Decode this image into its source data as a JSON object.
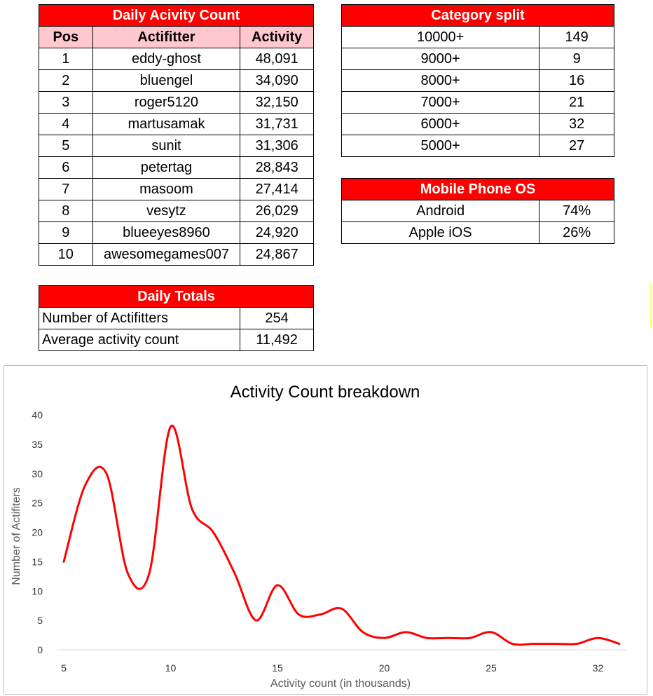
{
  "daily": {
    "title": "Daily Acivity Count",
    "headers": [
      "Pos",
      "Actifitter",
      "Activity"
    ],
    "rows": [
      [
        "1",
        "eddy-ghost",
        "48,091"
      ],
      [
        "2",
        "bluengel",
        "34,090"
      ],
      [
        "3",
        "roger5120",
        "32,150"
      ],
      [
        "4",
        "martusamak",
        "31,731"
      ],
      [
        "5",
        "sunit",
        "31,306"
      ],
      [
        "6",
        "petertag",
        "28,843"
      ],
      [
        "7",
        "masoom",
        "27,414"
      ],
      [
        "8",
        "vesytz",
        "26,029"
      ],
      [
        "9",
        "blueeyes8960",
        "24,920"
      ],
      [
        "10",
        "awesomegames007",
        "24,867"
      ]
    ]
  },
  "category": {
    "title": "Category split",
    "rows": [
      [
        "10000+",
        "149"
      ],
      [
        "9000+",
        "9"
      ],
      [
        "8000+",
        "16"
      ],
      [
        "7000+",
        "21"
      ],
      [
        "6000+",
        "32"
      ],
      [
        "5000+",
        "27"
      ]
    ]
  },
  "os": {
    "title": "Mobile Phone OS",
    "rows": [
      [
        "Android",
        "74%"
      ],
      [
        "Apple iOS",
        "26%"
      ]
    ]
  },
  "totals": {
    "title": "Daily Totals",
    "rows": [
      [
        "Number of Actifitters",
        "254"
      ],
      [
        "Average activity count",
        "11,492"
      ]
    ]
  },
  "chart_data": {
    "type": "line",
    "title": "Activity Count breakdown",
    "xlabel": "Activity count (in thousands)",
    "ylabel": "Number of Actifiters",
    "x_tick_labels": [
      "5",
      "10",
      "15",
      "20",
      "25",
      "32"
    ],
    "y_ticks": [
      0,
      5,
      10,
      15,
      20,
      25,
      30,
      35,
      40
    ],
    "ylim": [
      0,
      40
    ],
    "grid": false,
    "legend": "none",
    "line_color": "#ff0000",
    "x": [
      "5",
      "6",
      "7",
      "8",
      "9",
      "10",
      "11",
      "12",
      "13",
      "14",
      "15",
      "16",
      "17",
      "18",
      "19",
      "20",
      "21",
      "22",
      "23",
      "24",
      "25",
      "26",
      "27",
      "28",
      "29",
      "32",
      "33"
    ],
    "values": [
      15,
      28,
      30,
      13,
      13,
      38,
      24,
      20,
      13,
      5,
      11,
      6,
      6,
      7,
      3,
      2,
      3,
      2,
      2,
      2,
      3,
      1,
      1,
      1,
      1,
      2,
      1
    ]
  }
}
